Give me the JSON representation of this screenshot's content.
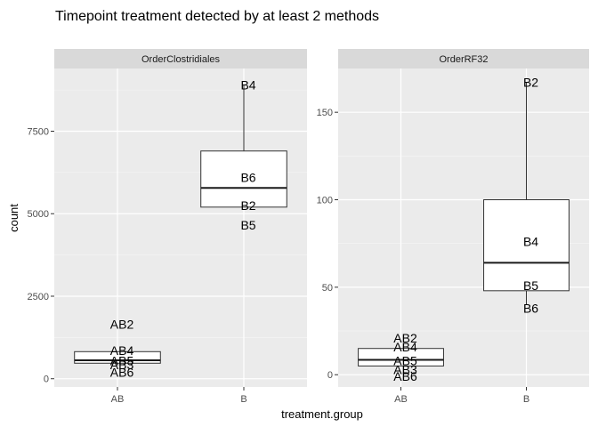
{
  "chart_data": {
    "type": "boxplot",
    "title": "Timepoint treatment detected by at least 2 methods",
    "xlabel": "treatment.group",
    "ylabel": "count",
    "categories": [
      "AB",
      "B"
    ],
    "panels": [
      {
        "name": "OrderClostridiales",
        "ylim": [
          -250,
          9400
        ],
        "yticks": [
          0,
          2500,
          5000,
          7500
        ],
        "ytick_labels": [
          "0",
          "2500",
          "5000",
          "7500"
        ],
        "boxes": [
          {
            "category": "AB",
            "q1": 470,
            "median": 560,
            "q3": 820,
            "whisker_low": 470,
            "whisker_high": 820
          },
          {
            "category": "B",
            "q1": 5200,
            "median": 5780,
            "q3": 6900,
            "whisker_low": 5200,
            "whisker_high": 8900
          }
        ],
        "points": [
          {
            "label": "AB2",
            "category": "AB",
            "y": 1650
          },
          {
            "label": "AB4",
            "category": "AB",
            "y": 850
          },
          {
            "label": "AB5",
            "category": "AB",
            "y": 540
          },
          {
            "label": "AB6",
            "category": "AB",
            "y": 200
          },
          {
            "label": "AB3",
            "category": "AB",
            "y": 430
          },
          {
            "label": "B4",
            "category": "B",
            "y": 8900
          },
          {
            "label": "B6",
            "category": "B",
            "y": 6100
          },
          {
            "label": "B2",
            "category": "B",
            "y": 5250
          },
          {
            "label": "B5",
            "category": "B",
            "y": 4650
          }
        ]
      },
      {
        "name": "OrderRF32",
        "ylim": [
          -7,
          175
        ],
        "yticks": [
          0,
          50,
          100,
          150
        ],
        "ytick_labels": [
          "0",
          "50",
          "100",
          "150"
        ],
        "boxes": [
          {
            "category": "AB",
            "q1": 5,
            "median": 8.5,
            "q3": 15,
            "whisker_low": 5,
            "whisker_high": 15
          },
          {
            "category": "B",
            "q1": 48,
            "median": 64,
            "q3": 100,
            "whisker_low": 40,
            "whisker_high": 167
          }
        ],
        "points": [
          {
            "label": "AB2",
            "category": "AB",
            "y": 21
          },
          {
            "label": "AB4",
            "category": "AB",
            "y": 16
          },
          {
            "label": "AB5",
            "category": "AB",
            "y": 8
          },
          {
            "label": "AB3",
            "category": "AB",
            "y": 3
          },
          {
            "label": "AB6",
            "category": "AB",
            "y": -1
          },
          {
            "label": "B2",
            "category": "B",
            "y": 167
          },
          {
            "label": "B4",
            "category": "B",
            "y": 76
          },
          {
            "label": "B5",
            "category": "B",
            "y": 51
          },
          {
            "label": "B6",
            "category": "B",
            "y": 38
          }
        ]
      }
    ],
    "grid": true,
    "legend": "none"
  }
}
